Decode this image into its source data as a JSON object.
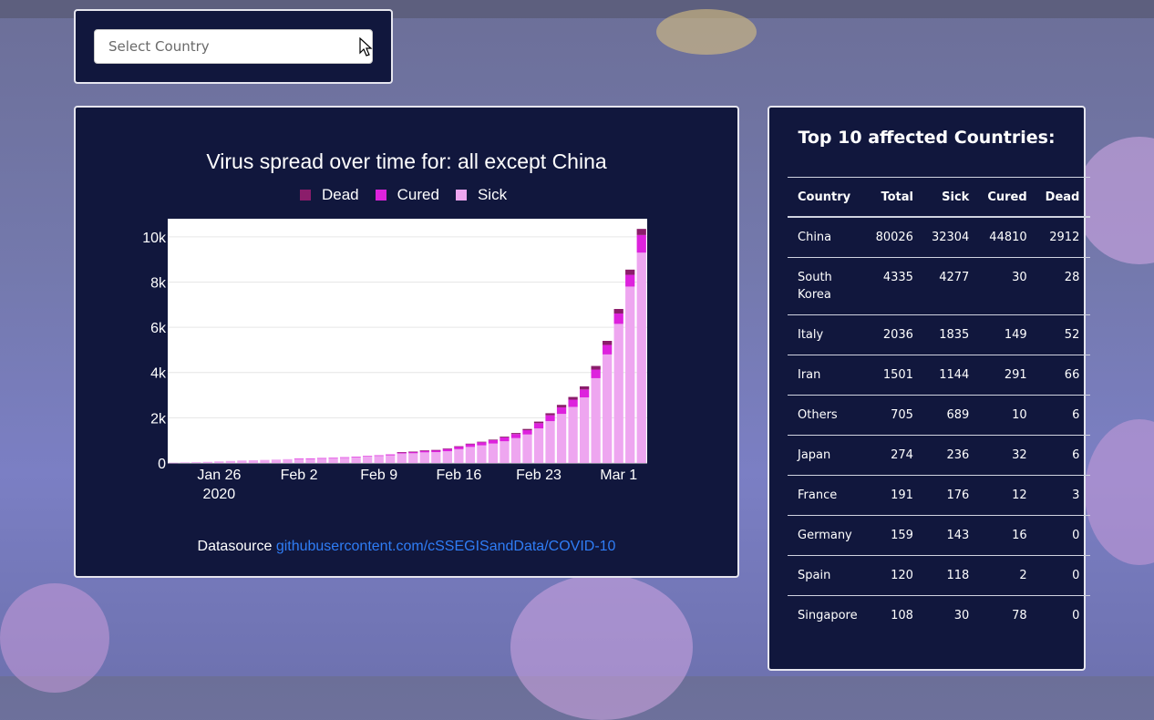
{
  "selector": {
    "placeholder": "Select Country"
  },
  "chart_panel": {
    "title": "Virus spread over time for: all except China",
    "datasource_label": "Datasource",
    "datasource_link": "githubusercontent.com/cSSEGISandData/COVID-10"
  },
  "colors": {
    "dead": "#8b1d6b",
    "cured": "#dd22dd",
    "sick": "#eea6f0",
    "panel": "#11173d"
  },
  "chart_data": {
    "type": "bar",
    "stacked": true,
    "title": "Virus spread over time for: all except China",
    "legend": [
      "Dead",
      "Cured",
      "Sick"
    ],
    "x_start": "2020-01-22",
    "x_ticks": [
      "Jan 26\n2020",
      "Feb 2",
      "Feb 9",
      "Feb 16",
      "Feb 23",
      "Mar 1"
    ],
    "y_ticks": [
      "0",
      "2k",
      "4k",
      "6k",
      "8k",
      "10k"
    ],
    "ylim": [
      0,
      10800
    ],
    "series": [
      {
        "name": "Sick",
        "values": [
          10,
          25,
          35,
          50,
          70,
          90,
          110,
          120,
          135,
          150,
          170,
          190,
          200,
          210,
          220,
          240,
          260,
          290,
          310,
          340,
          420,
          430,
          470,
          480,
          520,
          610,
          710,
          780,
          860,
          960,
          1100,
          1260,
          1530,
          1850,
          2170,
          2480,
          2900,
          3750,
          4800,
          6150,
          7800,
          9300
        ]
      },
      {
        "name": "Cured",
        "values": [
          0,
          0,
          0,
          0,
          0,
          0,
          0,
          0,
          0,
          0,
          0,
          2,
          5,
          8,
          10,
          15,
          20,
          25,
          30,
          40,
          55,
          70,
          80,
          90,
          110,
          120,
          130,
          140,
          150,
          170,
          180,
          190,
          230,
          260,
          290,
          320,
          350,
          380,
          420,
          460,
          520,
          780
        ]
      },
      {
        "name": "Dead",
        "values": [
          0,
          0,
          0,
          0,
          0,
          0,
          0,
          0,
          0,
          0,
          0,
          0,
          0,
          0,
          0,
          0,
          0,
          0,
          0,
          0,
          1,
          2,
          3,
          5,
          7,
          10,
          15,
          20,
          25,
          35,
          45,
          55,
          70,
          90,
          110,
          120,
          140,
          160,
          180,
          200,
          230,
          270
        ]
      }
    ]
  },
  "table": {
    "title": "Top 10 affected Countries:",
    "columns": [
      "Country",
      "Total",
      "Sick",
      "Cured",
      "Dead"
    ],
    "rows": [
      [
        "China",
        "80026",
        "32304",
        "44810",
        "2912"
      ],
      [
        "South Korea",
        "4335",
        "4277",
        "30",
        "28"
      ],
      [
        "Italy",
        "2036",
        "1835",
        "149",
        "52"
      ],
      [
        "Iran",
        "1501",
        "1144",
        "291",
        "66"
      ],
      [
        "Others",
        "705",
        "689",
        "10",
        "6"
      ],
      [
        "Japan",
        "274",
        "236",
        "32",
        "6"
      ],
      [
        "France",
        "191",
        "176",
        "12",
        "3"
      ],
      [
        "Germany",
        "159",
        "143",
        "16",
        "0"
      ],
      [
        "Spain",
        "120",
        "118",
        "2",
        "0"
      ],
      [
        "Singapore",
        "108",
        "30",
        "78",
        "0"
      ]
    ]
  }
}
